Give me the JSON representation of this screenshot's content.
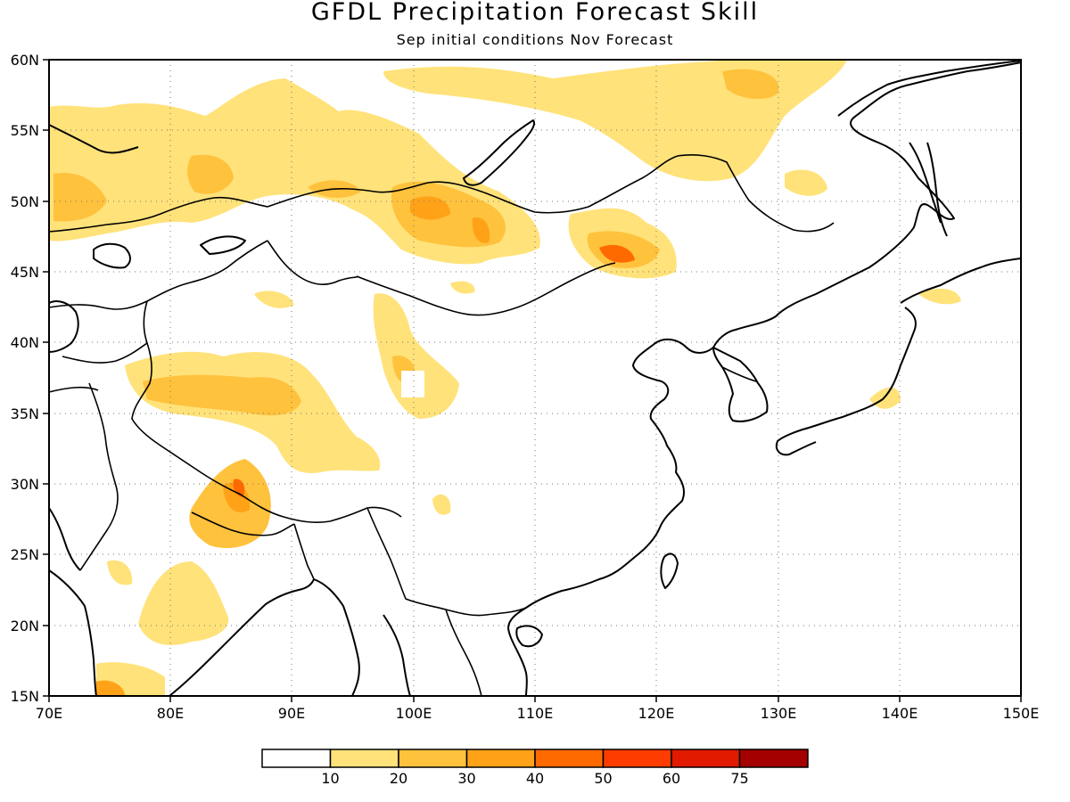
{
  "title": "GFDL Precipitation Forecast Skill",
  "subtitle": "Sep initial conditions  Nov Forecast",
  "lon_ticks": [
    "70E",
    "80E",
    "90E",
    "100E",
    "110E",
    "120E",
    "130E",
    "140E",
    "150E"
  ],
  "lat_ticks": [
    "60N",
    "55N",
    "50N",
    "45N",
    "40N",
    "35N",
    "30N",
    "25N",
    "20N",
    "15N"
  ],
  "colorbar": {
    "labels": [
      "10",
      "20",
      "30",
      "40",
      "50",
      "60",
      "75"
    ],
    "colors": [
      "#ffffff",
      "#ffe27a",
      "#ffc23d",
      "#ffa217",
      "#ff6a00",
      "#ff3c00",
      "#e11a00",
      "#a40000"
    ]
  },
  "map_data": {
    "extent": {
      "lon": [
        70,
        150
      ],
      "lat": [
        15,
        60
      ]
    },
    "variable": "precipitation forecast skill",
    "units": "%"
  }
}
